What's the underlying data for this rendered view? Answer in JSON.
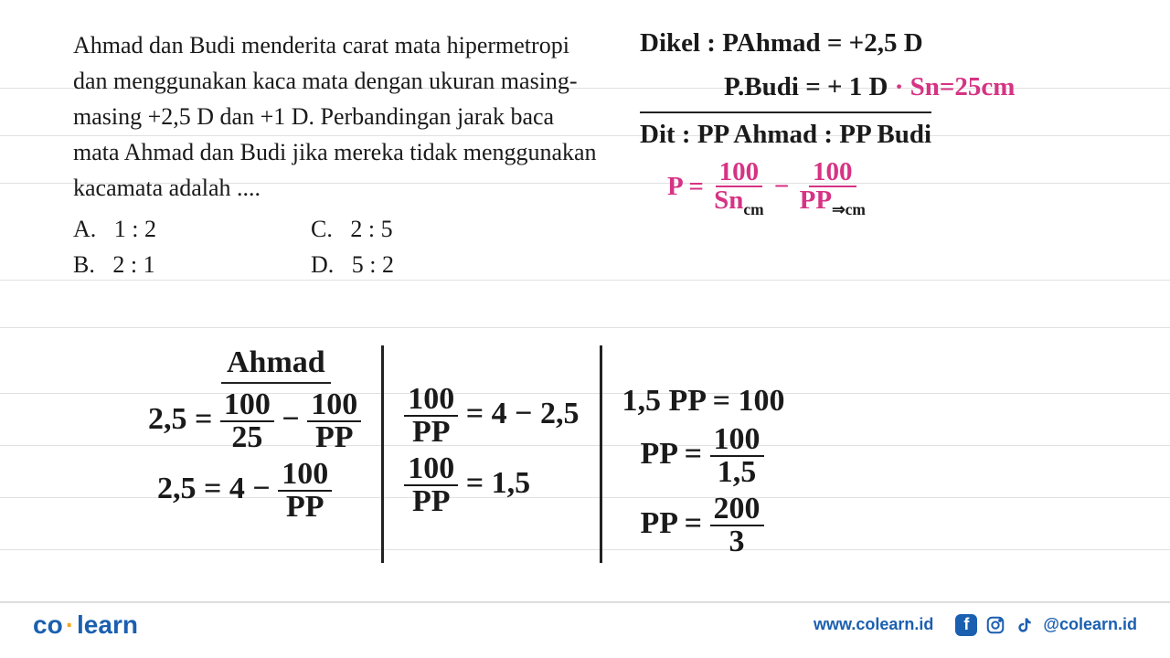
{
  "colors": {
    "text": "#1a1a1a",
    "handwriting": "#1a1a1a",
    "pink": "#d63384",
    "brand_blue": "#1b5fb0",
    "brand_orange": "#f5a623",
    "rule_line": "#888888",
    "background": "#ffffff"
  },
  "typography": {
    "question_font": "Georgia",
    "question_size_pt": 20,
    "hand_font": "Comic Sans MS",
    "hand_size_pt": 22
  },
  "rule_lines_y": [
    96,
    148,
    200,
    306,
    358,
    430,
    487,
    544,
    601,
    659
  ],
  "question": {
    "text": "Ahmad dan Budi menderita carat mata hipermetropi dan menggunakan kaca mata dengan ukuran masing-masing +2,5 D dan +1 D. Perbandingan jarak baca mata Ahmad dan Budi jika mereka tidak menggunakan kacamata adalah ....",
    "options": {
      "A": "1 : 2",
      "B": "2 : 1",
      "C": "2 : 5",
      "D": "5 : 2"
    }
  },
  "notes_top": {
    "l1_lhs": "Dikel :",
    "l1_rhs": "PAhmad = +2,5 D",
    "l2_lhs": "P.Budi",
    "l2_rhs": "= + 1 D",
    "l2_pink": "· Sn=25cm",
    "l3": "Dit :  PP Ahmad : PP Budi",
    "formula_lhs": "P =",
    "formula_f1_num": "100",
    "formula_f1_den": "Sn",
    "formula_mid": "−",
    "formula_f2_num": "100",
    "formula_f2_den": "PP",
    "formula_sub1": "cm",
    "formula_sub2": "⇒cm"
  },
  "work": {
    "col1": {
      "title": "Ahmad",
      "l1_lhs": "2,5 =",
      "l1_f1_num": "100",
      "l1_f1_den": "25",
      "l1_mid": "−",
      "l1_f2_num": "100",
      "l1_f2_den": "PP",
      "l2_lhs": "2,5 = 4 −",
      "l2_f_num": "100",
      "l2_f_den": "PP"
    },
    "col2": {
      "l1_f_num": "100",
      "l1_f_den": "PP",
      "l1_rhs": "= 4 − 2,5",
      "l2_f_num": "100",
      "l2_f_den": "PP",
      "l2_rhs": "= 1,5"
    },
    "col3": {
      "l1": "1,5 PP = 100",
      "l2_lhs": "PP =",
      "l2_f_num": "100",
      "l2_f_den": "1,5",
      "l3_lhs": "PP =",
      "l3_f_num": "200",
      "l3_f_den": "3"
    }
  },
  "footer": {
    "logo_left": "co",
    "logo_right": "learn",
    "url": "www.colearn.id",
    "handle": "@colearn.id",
    "icons": [
      "facebook-icon",
      "instagram-icon",
      "tiktok-icon"
    ]
  }
}
